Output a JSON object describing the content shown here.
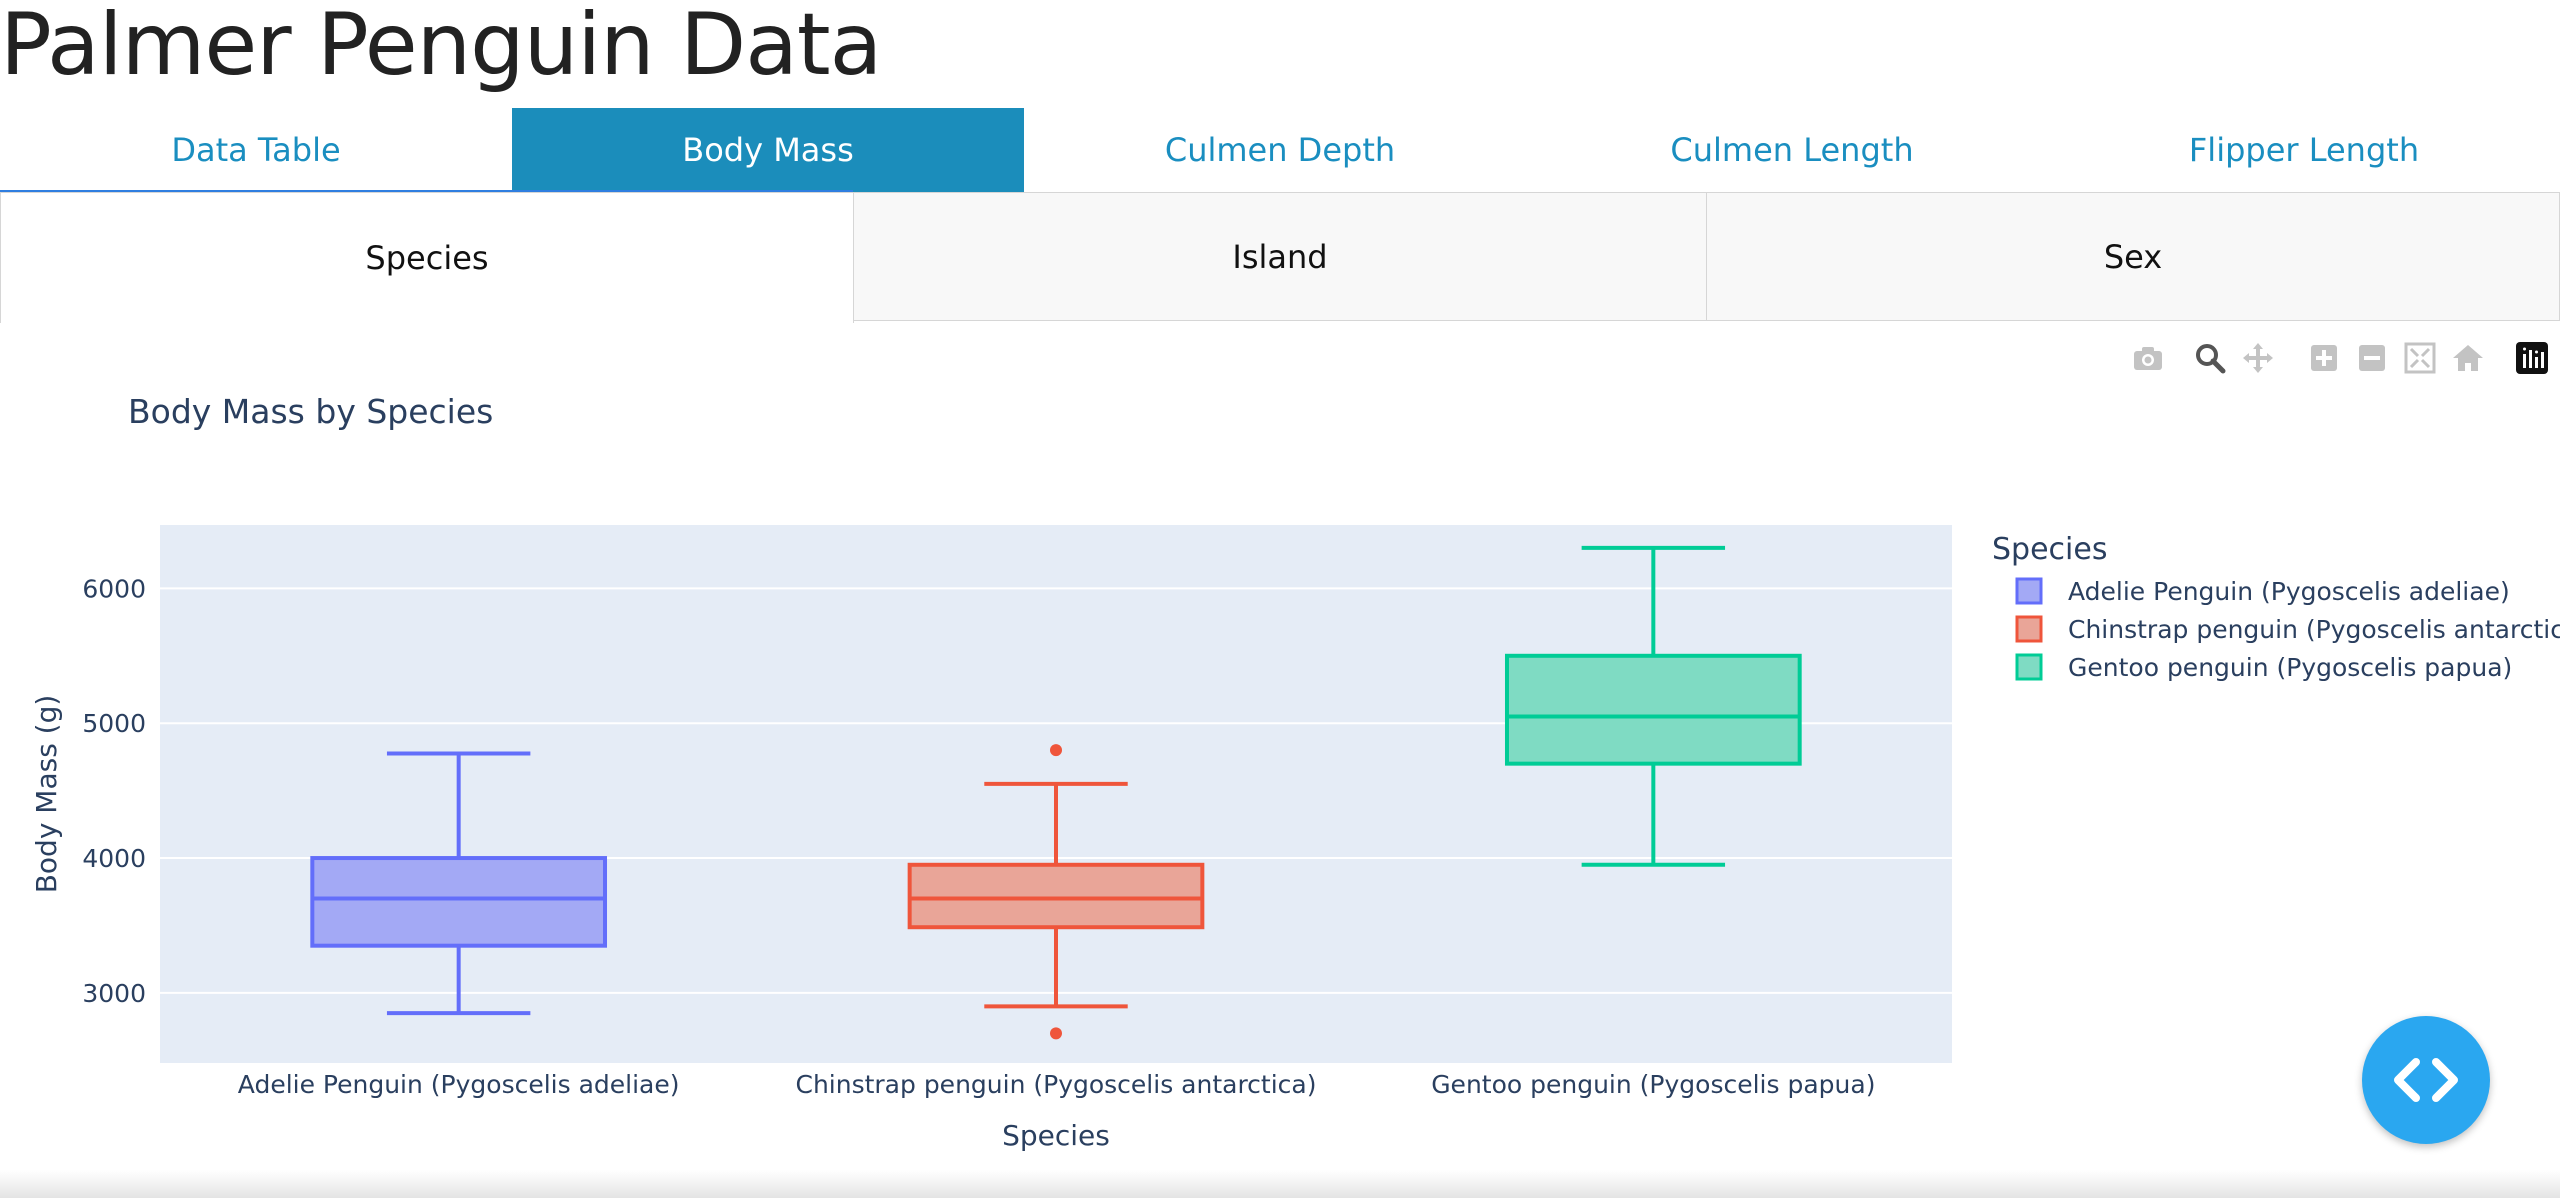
{
  "page": {
    "title": "Palmer Penguin Data"
  },
  "main_tabs": [
    {
      "label": "Data Table",
      "active": false
    },
    {
      "label": "Body Mass",
      "active": true
    },
    {
      "label": "Culmen Depth",
      "active": false
    },
    {
      "label": "Culmen Length",
      "active": false
    },
    {
      "label": "Flipper Length",
      "active": false
    }
  ],
  "sub_tabs": [
    {
      "label": "Species",
      "active": true
    },
    {
      "label": "Island",
      "active": false
    },
    {
      "label": "Sex",
      "active": false
    }
  ],
  "modebar": [
    "camera-icon",
    "zoom-icon",
    "pan-icon",
    "zoom-in-icon",
    "zoom-out-icon",
    "autoscale-icon",
    "reset-axes-icon",
    "plotly-logo-icon"
  ],
  "colors": {
    "accent": "#1b8dbb",
    "tab_text": "#1a8ec0",
    "plot_bg": "#e5ecf6",
    "fab": "#2aa7f0"
  },
  "chart_data": {
    "type": "box",
    "title": "Body Mass by Species",
    "xlabel": "Species",
    "ylabel": "Body Mass (g)",
    "ylim": [
      2480,
      6470
    ],
    "yticks": [
      3000,
      4000,
      5000,
      6000
    ],
    "grid": true,
    "legend_title": "Species",
    "legend_position": "right",
    "categories": [
      "Adelie Penguin (Pygoscelis adeliae)",
      "Chinstrap penguin (Pygoscelis antarctica)",
      "Gentoo penguin (Pygoscelis papua)"
    ],
    "series": [
      {
        "name": "Adelie Penguin (Pygoscelis adeliae)",
        "color": "#636efa",
        "fill": "#a3a9f5",
        "min": 2850,
        "q1": 3350,
        "median": 3700,
        "q3": 4000,
        "max": 4775,
        "outliers": []
      },
      {
        "name": "Chinstrap penguin (Pygoscelis antarctica)",
        "color": "#ef553b",
        "fill": "#e9a598",
        "min": 2900,
        "q1": 3487,
        "median": 3700,
        "q3": 3950,
        "max": 4550,
        "outliers": [
          4800,
          2700
        ]
      },
      {
        "name": "Gentoo penguin (Pygoscelis papua)",
        "color": "#00cc96",
        "fill": "#7fdbc3",
        "min": 3950,
        "q1": 4700,
        "median": 5050,
        "q3": 5500,
        "max": 6300,
        "outliers": []
      }
    ]
  }
}
